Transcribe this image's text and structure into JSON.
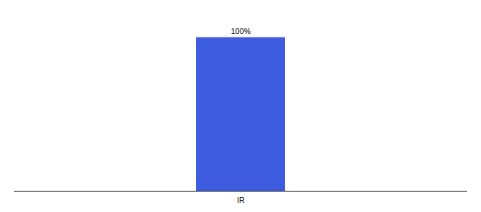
{
  "chart_data": {
    "type": "bar",
    "categories": [
      "IR"
    ],
    "values": [
      100
    ],
    "value_labels": [
      "100%"
    ],
    "data_labels": true,
    "color": "#3d5ce0",
    "ylim": [
      0,
      115
    ],
    "tick_labels": "x"
  }
}
